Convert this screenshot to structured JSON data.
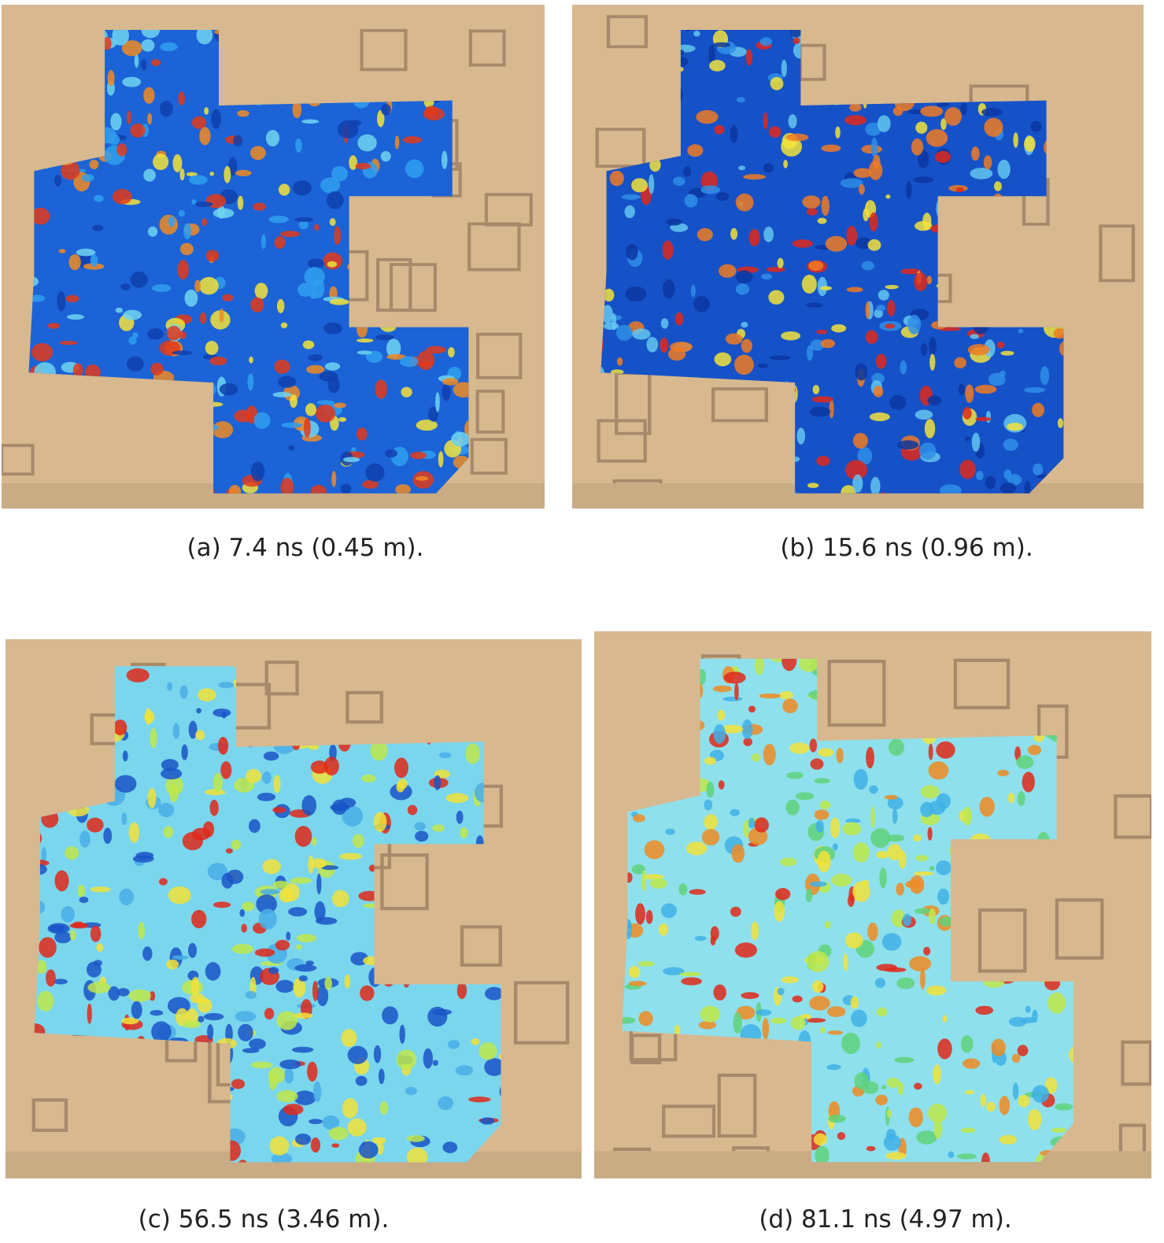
{
  "panels": [
    {
      "caption": "(a) 7.4 ns (0.45 m)."
    },
    {
      "caption": "(b) 15.6 ns (0.96 m)."
    },
    {
      "caption": "(c) 56.5 ns (3.46 m)."
    },
    {
      "caption": "(d) 81.1 ns (4.97 m)."
    }
  ]
}
